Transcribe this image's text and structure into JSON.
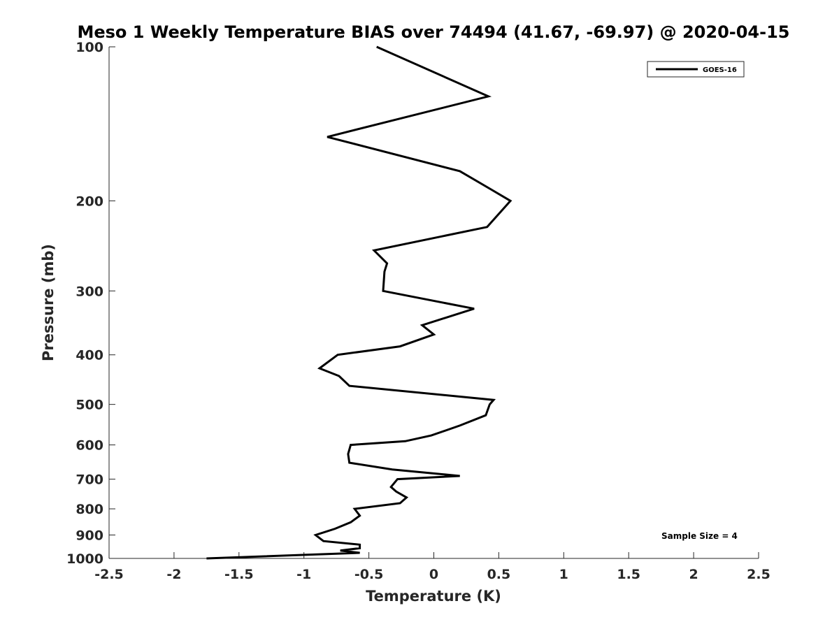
{
  "chart_data": {
    "type": "line",
    "title": "Meso 1 Weekly Temperature BIAS over 74494 (41.67, -69.97) @ 2020-04-15",
    "xlabel": "Temperature (K)",
    "ylabel": "Pressure (mb)",
    "xlim": [
      -2.5,
      2.5
    ],
    "ylim": [
      100,
      1000
    ],
    "y_scale": "log",
    "y_reversed": true,
    "x_ticks": [
      {
        "value": -2.5,
        "label": "-2.5"
      },
      {
        "value": -2,
        "label": "-2"
      },
      {
        "value": -1.5,
        "label": "-1.5"
      },
      {
        "value": -1,
        "label": "-1"
      },
      {
        "value": -0.5,
        "label": "-0.5"
      },
      {
        "value": 0,
        "label": "0"
      },
      {
        "value": 0.5,
        "label": "0.5"
      },
      {
        "value": 1,
        "label": "1"
      },
      {
        "value": 1.5,
        "label": "1.5"
      },
      {
        "value": 2,
        "label": "2"
      },
      {
        "value": 2.5,
        "label": "2.5"
      }
    ],
    "y_ticks": [
      {
        "value": 100,
        "label": "100"
      },
      {
        "value": 200,
        "label": "200"
      },
      {
        "value": 300,
        "label": "300"
      },
      {
        "value": 400,
        "label": "400"
      },
      {
        "value": 500,
        "label": "500"
      },
      {
        "value": 600,
        "label": "600"
      },
      {
        "value": 700,
        "label": "700"
      },
      {
        "value": 800,
        "label": "800"
      },
      {
        "value": 900,
        "label": "900"
      },
      {
        "value": 1000,
        "label": "1000"
      }
    ],
    "grid": false,
    "legend_position": "top-right",
    "series": [
      {
        "name": "GOES-16",
        "color": "#000000",
        "points": [
          {
            "x": -0.44,
            "y": 100
          },
          {
            "x": 0.42,
            "y": 125
          },
          {
            "x": -0.82,
            "y": 150
          },
          {
            "x": 0.2,
            "y": 175
          },
          {
            "x": 0.44,
            "y": 190
          },
          {
            "x": 0.59,
            "y": 200
          },
          {
            "x": 0.41,
            "y": 225
          },
          {
            "x": -0.46,
            "y": 250
          },
          {
            "x": -0.36,
            "y": 265
          },
          {
            "x": -0.38,
            "y": 275
          },
          {
            "x": -0.39,
            "y": 300
          },
          {
            "x": 0.31,
            "y": 325
          },
          {
            "x": -0.09,
            "y": 350
          },
          {
            "x": 0.0,
            "y": 365
          },
          {
            "x": -0.26,
            "y": 385
          },
          {
            "x": -0.74,
            "y": 400
          },
          {
            "x": -0.88,
            "y": 425
          },
          {
            "x": -0.73,
            "y": 440
          },
          {
            "x": -0.65,
            "y": 460
          },
          {
            "x": 0.46,
            "y": 490
          },
          {
            "x": 0.43,
            "y": 500
          },
          {
            "x": 0.4,
            "y": 525
          },
          {
            "x": 0.2,
            "y": 550
          },
          {
            "x": -0.02,
            "y": 575
          },
          {
            "x": -0.22,
            "y": 590
          },
          {
            "x": -0.64,
            "y": 600
          },
          {
            "x": -0.66,
            "y": 625
          },
          {
            "x": -0.65,
            "y": 650
          },
          {
            "x": -0.32,
            "y": 670
          },
          {
            "x": 0.2,
            "y": 690
          },
          {
            "x": -0.28,
            "y": 700
          },
          {
            "x": -0.33,
            "y": 725
          },
          {
            "x": -0.29,
            "y": 740
          },
          {
            "x": -0.21,
            "y": 760
          },
          {
            "x": -0.26,
            "y": 780
          },
          {
            "x": -0.61,
            "y": 800
          },
          {
            "x": -0.57,
            "y": 825
          },
          {
            "x": -0.64,
            "y": 850
          },
          {
            "x": -0.76,
            "y": 875
          },
          {
            "x": -0.91,
            "y": 900
          },
          {
            "x": -0.85,
            "y": 925
          },
          {
            "x": -0.57,
            "y": 940
          },
          {
            "x": -0.57,
            "y": 955
          },
          {
            "x": -0.72,
            "y": 965
          },
          {
            "x": -0.57,
            "y": 975
          },
          {
            "x": -1.75,
            "y": 1000
          }
        ]
      }
    ],
    "annotations": [
      {
        "text": "Sample Size = 4",
        "position": "bottom-right"
      }
    ]
  }
}
